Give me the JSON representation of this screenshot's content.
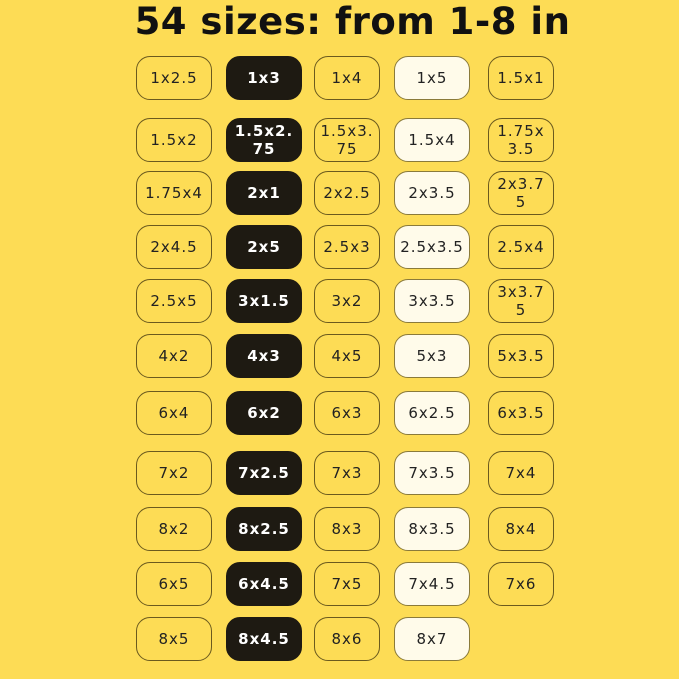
{
  "title": "54 sizes: from 1-8 in",
  "grid": {
    "rows": [
      [
        "1x2.5",
        "1x3",
        "1x4",
        "1x5",
        "1.5x1"
      ],
      [
        "1.5x2",
        "1.5x2.75",
        "1.5x3.75",
        "1.5x4",
        "1.75x3.5"
      ],
      [
        "1.75x4",
        "2x1",
        "2x2.5",
        "2x3.5",
        "2x3.75"
      ],
      [
        "2x4.5",
        "2x5",
        "2.5x3",
        "2.5x3.5",
        "2.5x4"
      ],
      [
        "2.5x5",
        "3x1.5",
        "3x2",
        "3x3.5",
        "3x3.75"
      ],
      [
        "4x2",
        "4x3",
        "4x5",
        "5x3",
        "5x3.5"
      ],
      [
        "6x4",
        "6x2",
        "6x3",
        "6x2.5",
        "6x3.5"
      ],
      [
        "7x2",
        "7x2.5",
        "7x3",
        "7x3.5",
        "7x4"
      ],
      [
        "8x2",
        "8x2.5",
        "8x3",
        "8x3.5",
        "8x4"
      ],
      [
        "6x5",
        "6x4.5",
        "7x5",
        "7x4.5",
        "7x6"
      ],
      [
        "8x5",
        "8x4.5",
        "8x6",
        "8x7"
      ]
    ]
  }
}
